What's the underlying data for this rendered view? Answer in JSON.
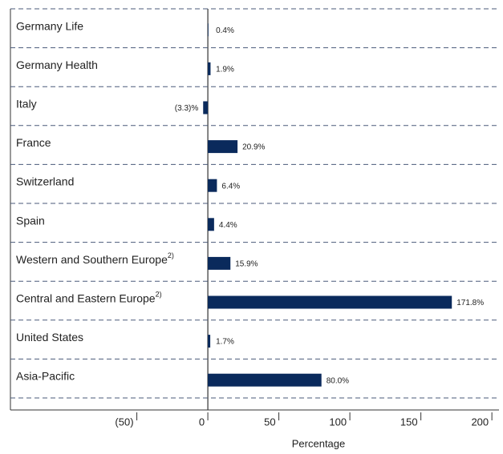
{
  "chart_data": {
    "type": "hbar",
    "categories": [
      "Germany Life",
      "Germany Health",
      "Italy",
      "France",
      "Switzerland",
      "Spain",
      "Western and Southern Europe",
      "Central and Eastern Europe",
      "United States",
      "Asia-Pacific"
    ],
    "category_notes": [
      null,
      null,
      null,
      null,
      null,
      null,
      "2)",
      "2)",
      null,
      null
    ],
    "values": [
      0.4,
      1.9,
      -3.3,
      20.9,
      6.4,
      4.4,
      15.9,
      171.8,
      1.7,
      80.0
    ],
    "value_labels": [
      "0.4%",
      "1.9%",
      "(3.3)%",
      "20.9%",
      "6.4%",
      "4.4%",
      "15.9%",
      "171.8%",
      "1.7%",
      "80.0%"
    ],
    "color": "#0a2a5c",
    "xlabel": "Percentage",
    "xlim": [
      -139,
      205
    ],
    "xticks": [
      {
        "value": -50,
        "label": "(50)"
      },
      0,
      50,
      100,
      150,
      200
    ]
  }
}
